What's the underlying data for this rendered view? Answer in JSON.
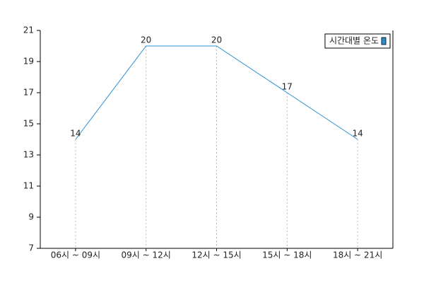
{
  "chart_data": {
    "type": "line",
    "categories": [
      "06시 ~ 09시",
      "09시 ~ 12시",
      "12시 ~ 15시",
      "15시 ~ 18시",
      "18시 ~ 21시"
    ],
    "series": [
      {
        "name": "시간대별 온도",
        "color": "#2a8fd0",
        "values": [
          14,
          20,
          20,
          17,
          14
        ]
      }
    ],
    "ylim": [
      7,
      21
    ],
    "yticks": [
      7,
      9,
      11,
      13,
      15,
      17,
      19,
      21
    ],
    "drop_lines": true,
    "data_labels": true,
    "legend": "top-right"
  }
}
